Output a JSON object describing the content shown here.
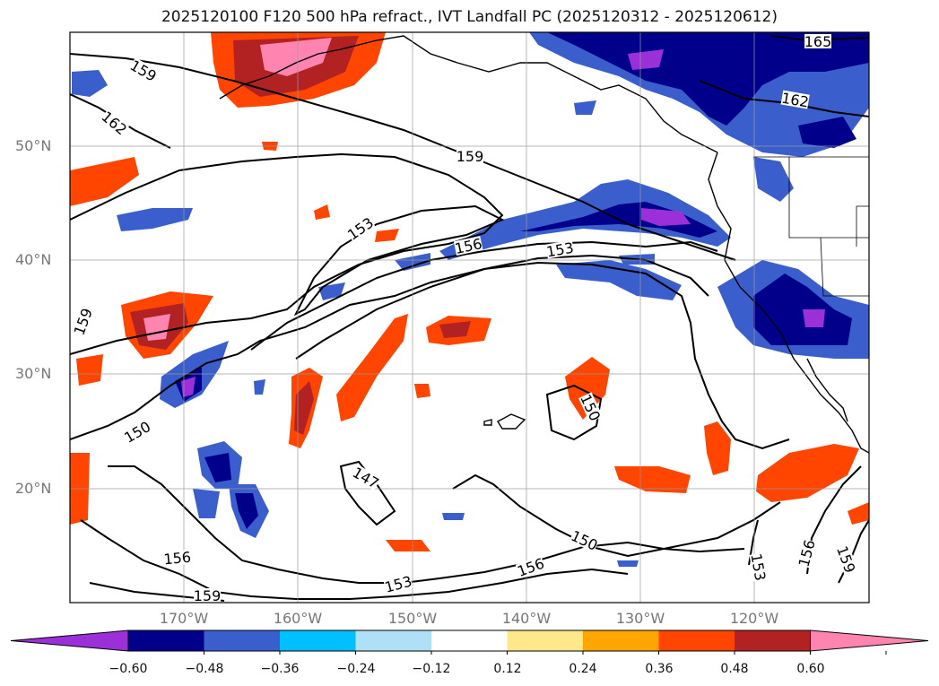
{
  "title": "2025120100 F120 500 hPa refract., IVT Landfall PC (2025120312 - 2025120612)",
  "lat_labels": [
    "50°N",
    "40°N",
    "30°N",
    "20°N"
  ],
  "lon_labels": [
    "170°W",
    "160°W",
    "150°W",
    "140°W",
    "130°W",
    "120°W"
  ],
  "contour_labels": [
    "159",
    "162",
    "165",
    "162",
    "159",
    "153",
    "156",
    "153",
    "159",
    "150",
    "147",
    "150",
    "156",
    "153",
    "156",
    "159",
    "150",
    "153",
    "156",
    "159"
  ],
  "colorbar": {
    "ticks": [
      "−0.60",
      "−0.48",
      "−0.36",
      "−0.24",
      "−0.12",
      "0.12",
      "0.24",
      "0.36",
      "0.48",
      "0.60"
    ],
    "colors": [
      "#9b30d9",
      "#00008b",
      "#3a5fcd",
      "#00bfff",
      "#b0e0f8",
      "#ffffff",
      "#ffe88a",
      "#ffa500",
      "#ff4500",
      "#b22222",
      "#ff85b0"
    ]
  },
  "palette": {
    "neg_strong": "#00008b",
    "neg_mid": "#3a5fcd",
    "neg_light": "#00bfff",
    "neg_extreme": "#9b30d9",
    "pos_light": "#ffa500",
    "pos_mid": "#ff4500",
    "pos_strong": "#b22222",
    "pos_extreme": "#ff85b0"
  }
}
